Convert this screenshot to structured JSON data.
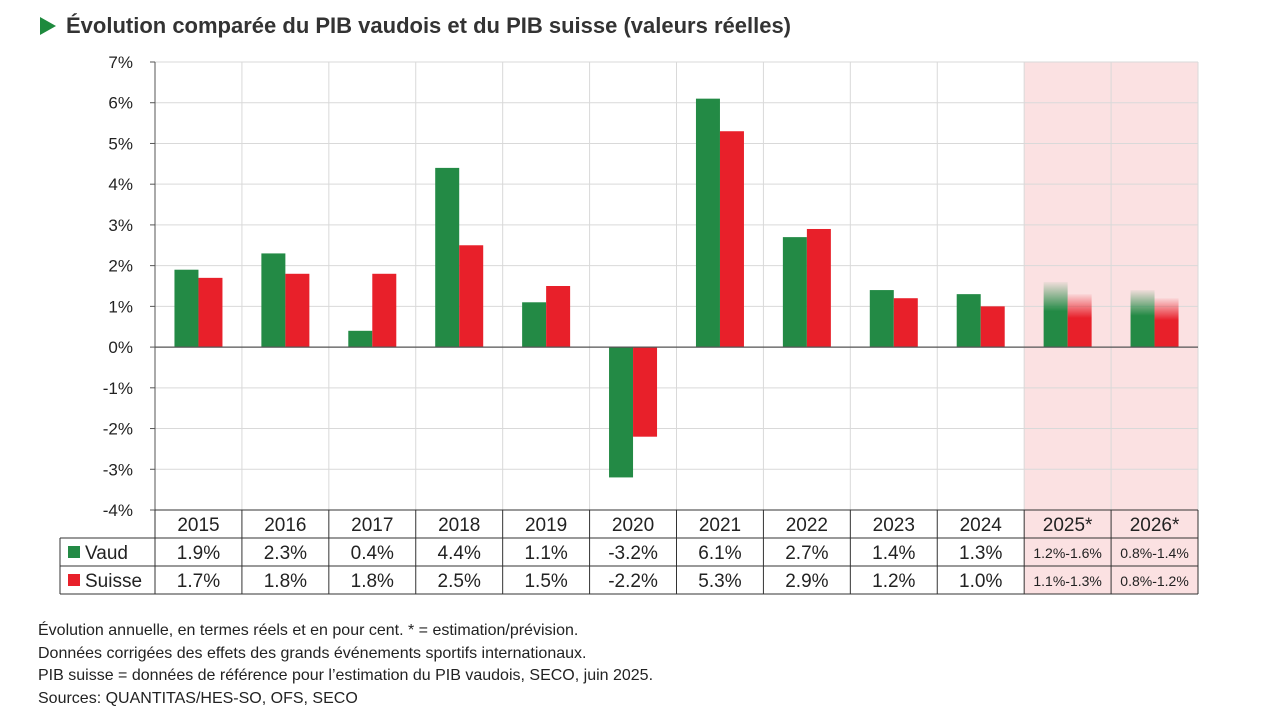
{
  "title": "Évolution comparée du PIB vaudois et du PIB suisse (valeurs réelles)",
  "colors": {
    "vaud": "#238a45",
    "suisse": "#e8202a",
    "forecast_bg": "#fbe1e2",
    "title_marker": "#1e8a3e"
  },
  "chart_data": {
    "type": "bar",
    "title": "Évolution comparée du PIB vaudois et du PIB suisse (valeurs réelles)",
    "categories": [
      "2015",
      "2016",
      "2017",
      "2018",
      "2019",
      "2020",
      "2021",
      "2022",
      "2023",
      "2024",
      "2025*",
      "2026*"
    ],
    "forecast_categories": [
      "2025*",
      "2026*"
    ],
    "ylim": [
      -4,
      7
    ],
    "y_ticks": [
      "7%",
      "6%",
      "5%",
      "4%",
      "3%",
      "2%",
      "1%",
      "0%",
      "-1%",
      "-2%",
      "-3%",
      "-4%"
    ],
    "y_tick_values": [
      7,
      6,
      5,
      4,
      3,
      2,
      1,
      0,
      -1,
      -2,
      -3,
      -4
    ],
    "grid": true,
    "legend": "table-below",
    "series": [
      {
        "name": "Vaud",
        "values": [
          1.9,
          2.3,
          0.4,
          4.4,
          1.1,
          -3.2,
          6.1,
          2.7,
          1.4,
          1.3,
          1.6,
          1.4
        ],
        "table_labels": [
          "1.9%",
          "2.3%",
          "0.4%",
          "4.4%",
          "1.1%",
          "-3.2%",
          "6.1%",
          "2.7%",
          "1.4%",
          "1.3%",
          "1.2%-1.6%",
          "0.8%-1.4%"
        ]
      },
      {
        "name": "Suisse",
        "values": [
          1.7,
          1.8,
          1.8,
          2.5,
          1.5,
          -2.2,
          5.3,
          2.9,
          1.2,
          1.0,
          1.3,
          1.2
        ],
        "table_labels": [
          "1.7%",
          "1.8%",
          "1.8%",
          "2.5%",
          "1.5%",
          "-2.2%",
          "5.3%",
          "2.9%",
          "1.2%",
          "1.0%",
          "1.1%-1.3%",
          "0.8%-1.2%"
        ]
      }
    ]
  },
  "notes": [
    "Évolution annuelle, en termes réels et en pour cent. * = estimation/prévision.",
    "Données corrigées des effets des grands événements sportifs internationaux.",
    "PIB suisse = données de référence pour l’estimation du PIB vaudois, SECO, juin 2025.",
    "Sources: QUANTITAS/HES-SO, OFS, SECO"
  ]
}
